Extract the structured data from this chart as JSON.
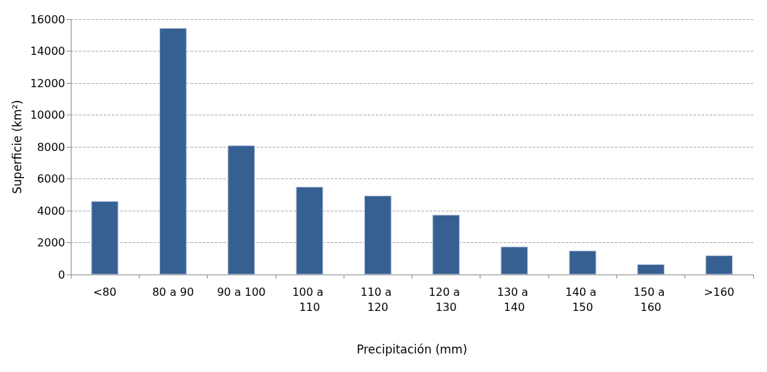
{
  "chart_data": {
    "type": "bar",
    "categories": [
      "<80",
      "80 a 90",
      "90 a 100",
      "100 a 110",
      "110 a 120",
      "120 a 130",
      "130 a 140",
      "140 a 150",
      "150 a 160",
      ">160"
    ],
    "values": [
      4600,
      15450,
      8100,
      5500,
      4950,
      3750,
      1750,
      1500,
      650,
      1200
    ],
    "color": "#376092",
    "xlabel": "Precipitación (mm)",
    "ylabel": "Superficie (km²)",
    "ylim": [
      0,
      16000
    ],
    "yticks": [
      0,
      2000,
      4000,
      6000,
      8000,
      10000,
      12000,
      14000,
      16000
    ],
    "grid": "y"
  }
}
